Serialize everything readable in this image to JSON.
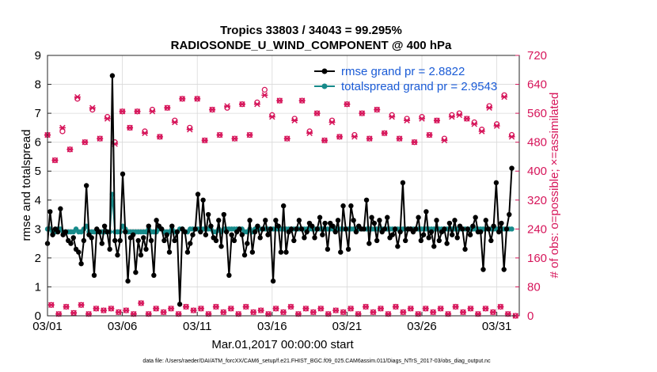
{
  "chart_data": {
    "type": "line",
    "title_line1": "Tropics 33803 / 34043 = 99.295%",
    "title_line2": "RADIOSONDE_U_WIND_COMPONENT @ 400 hPa",
    "xlabel": "Mar.01,2017 00:00:00 start",
    "ylabel_left": "rmse and totalspread",
    "ylabel_right": "# of obs: o=possible; ×=assimilated",
    "footer": "data file: /Users/raeder/DAI/ATM_forcXX/CAM6_setup/f.e21.FHIST_BGC.f09_025.CAM6assim.011/Diags_NTrS_2017-03/obs_diag_output.nc",
    "xlim": [
      0,
      31.5
    ],
    "ylim_left": [
      0,
      9
    ],
    "ylim_right": [
      0,
      720
    ],
    "x_ticks": [
      0,
      5,
      10,
      15,
      20,
      25,
      30
    ],
    "x_tick_labels": [
      "03/01",
      "03/06",
      "03/11",
      "03/16",
      "03/21",
      "03/26",
      "03/31"
    ],
    "y_left_ticks": [
      "0",
      "1",
      "2",
      "3",
      "4",
      "5",
      "6",
      "7",
      "8",
      "9"
    ],
    "y_right_ticks": [
      "0",
      "80",
      "160",
      "240",
      "320",
      "400",
      "480",
      "560",
      "640",
      "720"
    ],
    "colors": {
      "rmse": "#000000",
      "spread": "#168a8a",
      "obs": "#d6155a",
      "legend_text": "#1a5bd6"
    },
    "legend": [
      {
        "name": "rmse grand pr = 2.8822",
        "color": "#000000"
      },
      {
        "name": "totalspread grand pr = 2.9543",
        "color": "#168a8a"
      }
    ],
    "series": [
      {
        "name": "rmse",
        "axis": "left",
        "values": [
          2.5,
          3.6,
          2.8,
          3.0,
          2.9,
          3.7,
          2.8,
          2.9,
          2.6,
          2.5,
          2.7,
          2.3,
          2.2,
          1.8,
          2.6,
          4.5,
          2.8,
          2.7,
          1.4,
          3.0,
          2.9,
          2.5,
          3.1,
          2.9,
          2.3,
          8.3,
          2.6,
          2.1,
          2.6,
          4.9,
          2.9,
          1.2,
          2.7,
          2.8,
          1.5,
          2.6,
          2.1,
          2.7,
          2.3,
          3.1,
          2.6,
          1.4,
          3.3,
          3.1,
          3.0,
          2.6,
          2.8,
          2.2,
          3.1,
          2.6,
          2.9,
          0.4,
          3.0,
          2.9,
          2.2,
          2.5,
          2.8,
          3.0,
          4.2,
          2.9,
          4.0,
          2.8,
          3.5,
          3.1,
          2.7,
          2.6,
          3.3,
          2.4,
          3.5,
          2.9,
          1.4,
          2.8,
          2.6,
          2.9,
          3.0,
          2.8,
          2.1,
          2.5,
          3.3,
          2.2,
          2.9,
          3.1,
          2.7,
          3.0,
          3.3,
          2.8,
          3.0,
          1.2,
          3.3,
          3.1,
          2.2,
          3.8,
          2.2,
          2.9,
          3.0,
          2.6,
          3.0,
          3.3,
          3.0,
          2.7,
          2.9,
          3.2,
          3.1,
          2.7,
          3.0,
          3.4,
          2.8,
          3.2,
          2.3,
          3.2,
          3.1,
          2.9,
          3.3,
          2.2,
          3.8,
          3.0,
          2.3,
          3.8,
          3.3,
          2.9,
          3.1,
          3.0,
          3.0,
          4.0,
          2.5,
          3.4,
          3.2,
          2.6,
          3.3,
          2.9,
          3.0,
          3.4,
          2.7,
          2.8,
          3.0,
          2.4,
          2.9,
          4.6,
          2.6,
          3.0,
          3.0,
          2.9,
          3.0,
          3.4,
          2.6,
          2.8,
          3.6,
          2.7,
          2.9,
          2.4,
          3.3,
          2.6,
          2.9,
          3.0,
          2.5,
          3.2,
          2.8,
          3.3,
          2.7,
          3.1,
          3.0,
          2.3,
          3.0,
          2.8,
          3.1,
          3.4,
          2.9,
          2.9,
          1.6,
          3.3,
          3.0,
          2.6,
          3.1,
          4.6,
          2.9,
          3.2,
          1.6,
          3.0,
          3.5,
          5.1
        ]
      },
      {
        "name": "totalspread",
        "axis": "left",
        "values": [
          3.0,
          3.0,
          2.9,
          2.9,
          3.0,
          3.0,
          2.9,
          2.9,
          2.9,
          2.9,
          2.9,
          3.0,
          2.9,
          2.9,
          3.0,
          3.1,
          2.9,
          2.9,
          2.9,
          2.9,
          2.9,
          2.9,
          2.9,
          2.9,
          2.9,
          4.2,
          2.9,
          2.9,
          2.9,
          3.1,
          3.0,
          2.9,
          2.9,
          2.9,
          2.9,
          2.9,
          2.9,
          2.9,
          2.9,
          3.0,
          2.9,
          2.9,
          2.9,
          3.0,
          3.0,
          2.9,
          2.9,
          2.9,
          3.0,
          2.9,
          2.9,
          3.0,
          3.0,
          2.9,
          2.9,
          3.0,
          3.0,
          3.0,
          3.0,
          3.0,
          3.0,
          3.0,
          3.0,
          3.0,
          2.9,
          2.9,
          3.0,
          2.9,
          3.0,
          3.0,
          3.0,
          3.0,
          3.0,
          3.0,
          3.0,
          3.0,
          2.9,
          2.9,
          3.0,
          2.9,
          3.0,
          3.0,
          3.0,
          3.0,
          3.0,
          3.0,
          3.0,
          3.0,
          3.0,
          3.0,
          3.0,
          3.0,
          3.0,
          3.0,
          3.0,
          3.0,
          3.0,
          3.0,
          3.0,
          3.0,
          3.0,
          3.0,
          3.0,
          3.0,
          3.0,
          3.0,
          3.0,
          3.0,
          3.0,
          3.0,
          3.0,
          3.0,
          3.0,
          3.0,
          3.0,
          3.0,
          3.0,
          3.0,
          3.0,
          3.0,
          3.0,
          3.0,
          3.0,
          3.0,
          3.0,
          3.0,
          3.0,
          3.0,
          3.0,
          3.0,
          3.0,
          3.0,
          3.0,
          3.0,
          3.0,
          3.0,
          3.0,
          3.0,
          3.0,
          3.0,
          3.0,
          3.0,
          3.0,
          3.0,
          3.0,
          3.0,
          3.0,
          3.0,
          3.0,
          3.0,
          3.0,
          3.0,
          3.0,
          3.0,
          3.0,
          3.0,
          3.0,
          3.0,
          3.0,
          3.0,
          3.0,
          3.0,
          3.0,
          3.0,
          3.0,
          3.0,
          3.0,
          3.0,
          3.0,
          3.0,
          3.0,
          3.0,
          3.0,
          3.0,
          3.0,
          3.0,
          3.0,
          3.0,
          3.0,
          3.0
        ]
      }
    ],
    "obs_possible": [
      {
        "x": 0.0,
        "y": 500
      },
      {
        "x": 0.5,
        "y": 430
      },
      {
        "x": 1.0,
        "y": 510
      },
      {
        "x": 1.5,
        "y": 460
      },
      {
        "x": 2.0,
        "y": 600
      },
      {
        "x": 2.5,
        "y": 480
      },
      {
        "x": 3.0,
        "y": 570
      },
      {
        "x": 3.5,
        "y": 490
      },
      {
        "x": 4.0,
        "y": 550
      },
      {
        "x": 4.5,
        "y": 480
      },
      {
        "x": 5.0,
        "y": 565
      },
      {
        "x": 5.5,
        "y": 520
      },
      {
        "x": 6.0,
        "y": 565
      },
      {
        "x": 6.5,
        "y": 510
      },
      {
        "x": 7.0,
        "y": 570
      },
      {
        "x": 7.5,
        "y": 495
      },
      {
        "x": 8.0,
        "y": 575
      },
      {
        "x": 8.5,
        "y": 540
      },
      {
        "x": 9.0,
        "y": 600
      },
      {
        "x": 9.5,
        "y": 520
      },
      {
        "x": 10.0,
        "y": 600
      },
      {
        "x": 10.5,
        "y": 485
      },
      {
        "x": 11.0,
        "y": 570
      },
      {
        "x": 11.5,
        "y": 500
      },
      {
        "x": 12.0,
        "y": 575
      },
      {
        "x": 12.5,
        "y": 490
      },
      {
        "x": 13.0,
        "y": 585
      },
      {
        "x": 13.5,
        "y": 500
      },
      {
        "x": 14.0,
        "y": 590
      },
      {
        "x": 14.5,
        "y": 625
      },
      {
        "x": 15.0,
        "y": 555
      },
      {
        "x": 15.5,
        "y": 595
      },
      {
        "x": 16.0,
        "y": 490
      },
      {
        "x": 16.5,
        "y": 545
      },
      {
        "x": 17.0,
        "y": 595
      },
      {
        "x": 17.5,
        "y": 510
      },
      {
        "x": 18.0,
        "y": 560
      },
      {
        "x": 18.5,
        "y": 485
      },
      {
        "x": 19.0,
        "y": 540
      },
      {
        "x": 19.5,
        "y": 495
      },
      {
        "x": 20.0,
        "y": 585
      },
      {
        "x": 20.5,
        "y": 500
      },
      {
        "x": 21.0,
        "y": 560
      },
      {
        "x": 21.5,
        "y": 490
      },
      {
        "x": 22.0,
        "y": 570
      },
      {
        "x": 22.5,
        "y": 505
      },
      {
        "x": 23.0,
        "y": 555
      },
      {
        "x": 23.5,
        "y": 490
      },
      {
        "x": 24.0,
        "y": 545
      },
      {
        "x": 24.5,
        "y": 480
      },
      {
        "x": 25.0,
        "y": 550
      },
      {
        "x": 25.5,
        "y": 500
      },
      {
        "x": 26.0,
        "y": 540
      },
      {
        "x": 26.5,
        "y": 490
      },
      {
        "x": 27.0,
        "y": 555
      },
      {
        "x": 27.5,
        "y": 560
      },
      {
        "x": 28.0,
        "y": 545
      },
      {
        "x": 28.5,
        "y": 535
      },
      {
        "x": 29.0,
        "y": 515
      },
      {
        "x": 29.5,
        "y": 580
      },
      {
        "x": 30.0,
        "y": 530
      },
      {
        "x": 30.5,
        "y": 610
      },
      {
        "x": 31.0,
        "y": 500
      }
    ],
    "obs_assimilated": [
      {
        "x": 0.0,
        "y": 500
      },
      {
        "x": 0.5,
        "y": 430
      },
      {
        "x": 1.0,
        "y": 520
      },
      {
        "x": 1.5,
        "y": 460
      },
      {
        "x": 2.0,
        "y": 605
      },
      {
        "x": 2.5,
        "y": 480
      },
      {
        "x": 3.0,
        "y": 575
      },
      {
        "x": 3.5,
        "y": 490
      },
      {
        "x": 4.0,
        "y": 545
      },
      {
        "x": 4.5,
        "y": 475
      },
      {
        "x": 5.0,
        "y": 565
      },
      {
        "x": 5.5,
        "y": 520
      },
      {
        "x": 6.0,
        "y": 565
      },
      {
        "x": 6.5,
        "y": 505
      },
      {
        "x": 7.0,
        "y": 565
      },
      {
        "x": 7.5,
        "y": 495
      },
      {
        "x": 8.0,
        "y": 575
      },
      {
        "x": 8.5,
        "y": 535
      },
      {
        "x": 9.0,
        "y": 600
      },
      {
        "x": 9.5,
        "y": 515
      },
      {
        "x": 10.0,
        "y": 600
      },
      {
        "x": 10.5,
        "y": 485
      },
      {
        "x": 11.0,
        "y": 570
      },
      {
        "x": 11.5,
        "y": 500
      },
      {
        "x": 12.0,
        "y": 580
      },
      {
        "x": 12.5,
        "y": 490
      },
      {
        "x": 13.0,
        "y": 585
      },
      {
        "x": 13.5,
        "y": 500
      },
      {
        "x": 14.0,
        "y": 585
      },
      {
        "x": 14.5,
        "y": 610
      },
      {
        "x": 15.0,
        "y": 550
      },
      {
        "x": 15.5,
        "y": 595
      },
      {
        "x": 16.0,
        "y": 490
      },
      {
        "x": 16.5,
        "y": 540
      },
      {
        "x": 17.0,
        "y": 595
      },
      {
        "x": 17.5,
        "y": 505
      },
      {
        "x": 18.0,
        "y": 560
      },
      {
        "x": 18.5,
        "y": 485
      },
      {
        "x": 19.0,
        "y": 535
      },
      {
        "x": 19.5,
        "y": 495
      },
      {
        "x": 20.0,
        "y": 585
      },
      {
        "x": 20.5,
        "y": 495
      },
      {
        "x": 21.0,
        "y": 560
      },
      {
        "x": 21.5,
        "y": 490
      },
      {
        "x": 22.0,
        "y": 570
      },
      {
        "x": 22.5,
        "y": 505
      },
      {
        "x": 23.0,
        "y": 550
      },
      {
        "x": 23.5,
        "y": 490
      },
      {
        "x": 24.0,
        "y": 540
      },
      {
        "x": 24.5,
        "y": 480
      },
      {
        "x": 25.0,
        "y": 545
      },
      {
        "x": 25.5,
        "y": 500
      },
      {
        "x": 26.0,
        "y": 540
      },
      {
        "x": 26.5,
        "y": 485
      },
      {
        "x": 27.0,
        "y": 550
      },
      {
        "x": 27.5,
        "y": 555
      },
      {
        "x": 28.0,
        "y": 545
      },
      {
        "x": 28.5,
        "y": 530
      },
      {
        "x": 29.0,
        "y": 510
      },
      {
        "x": 29.5,
        "y": 575
      },
      {
        "x": 30.0,
        "y": 525
      },
      {
        "x": 30.5,
        "y": 605
      },
      {
        "x": 31.0,
        "y": 495
      }
    ],
    "obs_possible_low": [
      {
        "x": 0.25,
        "y": 30
      },
      {
        "x": 0.75,
        "y": 5
      },
      {
        "x": 1.25,
        "y": 25
      },
      {
        "x": 1.75,
        "y": 8
      },
      {
        "x": 2.25,
        "y": 30
      },
      {
        "x": 2.75,
        "y": 5
      },
      {
        "x": 3.25,
        "y": 20
      },
      {
        "x": 3.75,
        "y": 15
      },
      {
        "x": 4.25,
        "y": 20
      },
      {
        "x": 4.75,
        "y": 10
      },
      {
        "x": 5.25,
        "y": 15
      },
      {
        "x": 5.75,
        "y": 5
      },
      {
        "x": 6.25,
        "y": 35
      },
      {
        "x": 6.75,
        "y": 5
      },
      {
        "x": 7.25,
        "y": 20
      },
      {
        "x": 7.75,
        "y": 10
      },
      {
        "x": 8.25,
        "y": 20
      },
      {
        "x": 8.75,
        "y": 5
      },
      {
        "x": 9.25,
        "y": 25
      },
      {
        "x": 9.75,
        "y": 15
      },
      {
        "x": 10.25,
        "y": 20
      },
      {
        "x": 10.75,
        "y": 5
      },
      {
        "x": 11.25,
        "y": 25
      },
      {
        "x": 11.75,
        "y": 10
      },
      {
        "x": 12.25,
        "y": 20
      },
      {
        "x": 12.75,
        "y": 5
      },
      {
        "x": 13.25,
        "y": 25
      },
      {
        "x": 13.75,
        "y": 10
      },
      {
        "x": 14.25,
        "y": 15
      },
      {
        "x": 14.75,
        "y": 5
      },
      {
        "x": 15.25,
        "y": 20
      },
      {
        "x": 15.75,
        "y": 10
      },
      {
        "x": 16.25,
        "y": 25
      },
      {
        "x": 16.75,
        "y": 5
      },
      {
        "x": 17.25,
        "y": 20
      },
      {
        "x": 17.75,
        "y": 10
      },
      {
        "x": 18.25,
        "y": 20
      },
      {
        "x": 18.75,
        "y": 5
      },
      {
        "x": 19.25,
        "y": 15
      },
      {
        "x": 19.75,
        "y": 10
      },
      {
        "x": 20.25,
        "y": 20
      },
      {
        "x": 20.75,
        "y": 5
      },
      {
        "x": 21.25,
        "y": 25
      },
      {
        "x": 21.75,
        "y": 10
      },
      {
        "x": 22.25,
        "y": 20
      },
      {
        "x": 22.75,
        "y": 5
      },
      {
        "x": 23.25,
        "y": 25
      },
      {
        "x": 23.75,
        "y": 10
      },
      {
        "x": 24.25,
        "y": 20
      },
      {
        "x": 24.75,
        "y": 5
      },
      {
        "x": 25.25,
        "y": 20
      },
      {
        "x": 25.75,
        "y": 10
      },
      {
        "x": 26.25,
        "y": 20
      },
      {
        "x": 26.75,
        "y": 5
      },
      {
        "x": 27.25,
        "y": 25
      },
      {
        "x": 27.75,
        "y": 10
      },
      {
        "x": 28.25,
        "y": 20
      },
      {
        "x": 28.75,
        "y": 5
      },
      {
        "x": 29.25,
        "y": 20
      },
      {
        "x": 29.75,
        "y": 10
      },
      {
        "x": 30.25,
        "y": 25
      },
      {
        "x": 30.75,
        "y": 5
      },
      {
        "x": 31.25,
        "y": 0
      }
    ]
  }
}
